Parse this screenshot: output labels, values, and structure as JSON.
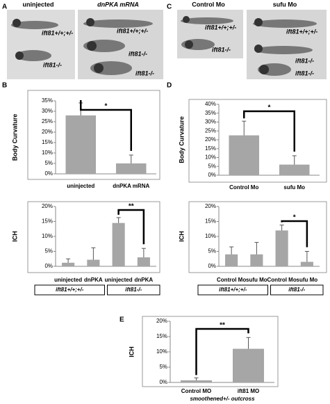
{
  "figure_panels": [
    {
      "letter": "A",
      "images": [
        {
          "title": "uninjected",
          "labels": [
            "ift81+/+;+/-",
            "ift81-/-"
          ]
        },
        {
          "title": "dnPKA mRNA",
          "labels": [
            "ift81+/+;+/-",
            "ift81-/-",
            "ift81-/-"
          ]
        }
      ]
    },
    {
      "letter": "C",
      "images": [
        {
          "title": "Control Mo",
          "labels": [
            "ift81+/+;+/-",
            "ift81-/-"
          ]
        },
        {
          "title": "sufu Mo",
          "labels": [
            "ift81+/+;+/-",
            "ift81-/-",
            "ift81-/-"
          ]
        }
      ]
    }
  ],
  "chart_data": [
    {
      "type": "bar",
      "panel": "B",
      "ylabel": "Body Curvature",
      "categories": [
        "uninjected",
        "dnPKA mRNA"
      ],
      "values": [
        28,
        5
      ],
      "errors": [
        6,
        4
      ],
      "color": "#a6a6a6",
      "annotation": "*",
      "ylim": [
        0,
        35
      ],
      "yticks": [
        {
          "value": 0,
          "label": "0%"
        },
        {
          "value": 5,
          "label": "5%"
        },
        {
          "value": 10,
          "label": "10%"
        },
        {
          "value": 15,
          "label": "15%"
        },
        {
          "value": 20,
          "label": "20%"
        },
        {
          "value": 25,
          "label": "25%"
        },
        {
          "value": 30,
          "label": "30%"
        },
        {
          "value": 35,
          "label": "35%"
        }
      ]
    },
    {
      "type": "bar",
      "ylabel": "ICH",
      "categories": [
        "uninjected",
        "dnPKA",
        "uninjected",
        "dnPKA"
      ],
      "values": [
        1.2,
        2.2,
        14.5,
        3
      ],
      "errors": [
        1.3,
        4,
        1.8,
        3
      ],
      "color": "#a6a6a6",
      "annotation": "**",
      "ylim": [
        0,
        20
      ],
      "yticks": [
        {
          "value": 0,
          "label": "0%"
        },
        {
          "value": 5,
          "label": "5%"
        },
        {
          "value": 10,
          "label": "10%"
        },
        {
          "value": 15,
          "label": "15%"
        },
        {
          "value": 20,
          "label": "20%"
        }
      ],
      "groups": [
        "ift81+/+;+/-",
        "ift81-/-"
      ]
    },
    {
      "type": "bar",
      "panel": "D",
      "ylabel": "Body Curvature",
      "categories": [
        "Control Mo",
        "sufu Mo"
      ],
      "values": [
        22.5,
        6
      ],
      "errors": [
        8,
        5
      ],
      "color": "#a6a6a6",
      "annotation": "*",
      "ylim": [
        0,
        40
      ],
      "yticks": [
        {
          "value": 0,
          "label": "0%"
        },
        {
          "value": 5,
          "label": "5%"
        },
        {
          "value": 10,
          "label": "10%"
        },
        {
          "value": 15,
          "label": "15%"
        },
        {
          "value": 20,
          "label": "20%"
        },
        {
          "value": 25,
          "label": "25%"
        },
        {
          "value": 30,
          "label": "30%"
        },
        {
          "value": 35,
          "label": "35%"
        },
        {
          "value": 40,
          "label": "40%"
        }
      ]
    },
    {
      "type": "bar",
      "ylabel": "ICH",
      "categories": [
        "Control Mo",
        "sufu Mo",
        "Control Mo",
        "sufu Mo"
      ],
      "values": [
        4,
        4,
        12,
        1.5
      ],
      "errors": [
        2.5,
        4,
        1.8,
        3.5
      ],
      "color": "#a6a6a6",
      "annotation": "*",
      "ylim": [
        0,
        20
      ],
      "yticks": [
        {
          "value": 0,
          "label": "0%"
        },
        {
          "value": 5,
          "label": "5%"
        },
        {
          "value": 10,
          "label": "10%"
        },
        {
          "value": 15,
          "label": "15%"
        },
        {
          "value": 20,
          "label": "20%"
        }
      ],
      "groups": [
        "ift81+/+;+/-",
        "ift81-/-"
      ]
    },
    {
      "type": "bar",
      "panel": "E",
      "ylabel": "ICH",
      "categories": [
        "Control MO",
        "ift81 MO"
      ],
      "xlabel": "smoothened+/- outcross",
      "values": [
        0.7,
        11
      ],
      "errors": [
        0.8,
        3.7
      ],
      "color": "#a6a6a6",
      "annotation": "**",
      "ylim": [
        0,
        20
      ],
      "yticks": [
        {
          "value": 0,
          "label": "0%"
        },
        {
          "value": 5,
          "label": "5%"
        },
        {
          "value": 10,
          "label": "10%"
        },
        {
          "value": 15,
          "label": "15%"
        },
        {
          "value": 20,
          "label": "20%"
        }
      ]
    }
  ]
}
